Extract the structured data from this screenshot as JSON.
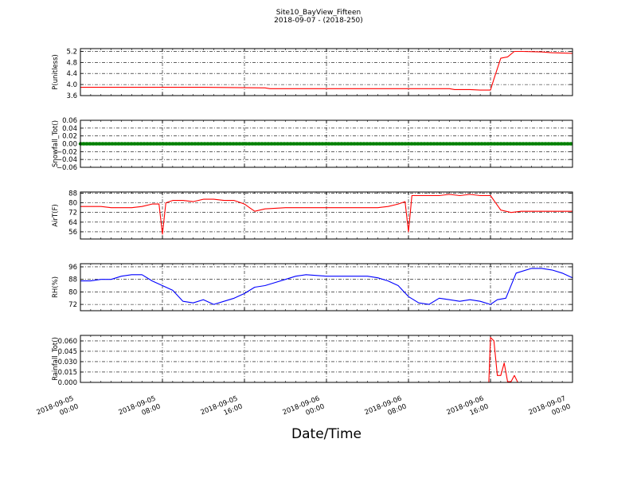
{
  "figure": {
    "title": "Site10_BayView_Fifteen",
    "subtitle": "2018-09-07 - (2018-250)",
    "xlabel": "Date/Time"
  },
  "x_axis": {
    "range": [
      "2018-09-05 00:00",
      "2018-09-07 00:00"
    ],
    "ticks": [
      {
        "t": "2018-09-05 00:00",
        "line1": "2018-09-05",
        "line2": "00:00"
      },
      {
        "t": "2018-09-05 08:00",
        "line1": "2018-09-05",
        "line2": "08:00"
      },
      {
        "t": "2018-09-05 16:00",
        "line1": "2018-09-05",
        "line2": "16:00"
      },
      {
        "t": "2018-09-06 00:00",
        "line1": "2018-09-06",
        "line2": "00:00"
      },
      {
        "t": "2018-09-06 08:00",
        "line1": "2018-09-06",
        "line2": "08:00"
      },
      {
        "t": "2018-09-06 16:00",
        "line1": "2018-09-06",
        "line2": "16:00"
      },
      {
        "t": "2018-09-07 00:00",
        "line1": "2018-09-07",
        "line2": "00:00"
      }
    ]
  },
  "chart_data": [
    {
      "type": "line",
      "ylabel": "P(unitless)",
      "ylim": [
        3.6,
        5.3
      ],
      "yticks": [
        "5.2",
        "4.8",
        "4.4",
        "4.0",
        "3.6"
      ],
      "grid": true,
      "color": "#ff0000",
      "x": [
        "2018-09-05 00:00",
        "2018-09-05 12:00",
        "2018-09-05 18:00",
        "2018-09-05 18:30",
        "2018-09-06 00:00",
        "2018-09-06 12:00",
        "2018-09-06 12:30",
        "2018-09-06 14:00",
        "2018-09-06 15:00",
        "2018-09-06 16:00",
        "2018-09-06 16:20",
        "2018-09-06 17:00",
        "2018-09-06 17:40",
        "2018-09-06 18:20",
        "2018-09-06 19:00",
        "2018-09-06 20:00",
        "2018-09-06 21:00",
        "2018-09-06 22:00",
        "2018-09-06 23:00",
        "2018-09-07 00:00"
      ],
      "y": [
        3.9,
        3.9,
        3.88,
        3.85,
        3.85,
        3.85,
        3.82,
        3.82,
        3.8,
        3.8,
        4.2,
        4.95,
        5.0,
        5.2,
        5.2,
        5.19,
        5.18,
        5.15,
        5.14,
        5.13
      ]
    },
    {
      "type": "scatter",
      "ylabel": "Snowfall_Tot()",
      "ylim": [
        -0.06,
        0.06
      ],
      "yticks": [
        "0.06",
        "0.04",
        "0.02",
        "0.00",
        "−0.02",
        "−0.04",
        "−0.06"
      ],
      "grid": true,
      "color": "#008000",
      "x": [
        "2018-09-05 00:00",
        "2018-09-07 00:00"
      ],
      "y": [
        0,
        0
      ]
    },
    {
      "type": "line",
      "ylabel": "AirT(F)",
      "ylim": [
        50,
        89
      ],
      "yticks": [
        "88",
        "80",
        "72",
        "64",
        "56"
      ],
      "grid": true,
      "color": "#ff0000",
      "x": [
        "2018-09-05 00:00",
        "2018-09-05 01:00",
        "2018-09-05 02:00",
        "2018-09-05 03:00",
        "2018-09-05 04:00",
        "2018-09-05 05:00",
        "2018-09-05 06:00",
        "2018-09-05 07:00",
        "2018-09-05 07:40",
        "2018-09-05 08:00",
        "2018-09-05 08:20",
        "2018-09-05 09:00",
        "2018-09-05 10:00",
        "2018-09-05 11:00",
        "2018-09-05 12:00",
        "2018-09-05 13:00",
        "2018-09-05 14:00",
        "2018-09-05 15:00",
        "2018-09-05 16:00",
        "2018-09-05 16:30",
        "2018-09-05 17:00",
        "2018-09-05 18:00",
        "2018-09-05 20:00",
        "2018-09-05 22:00",
        "2018-09-06 00:00",
        "2018-09-06 02:00",
        "2018-09-06 04:00",
        "2018-09-06 05:00",
        "2018-09-06 06:00",
        "2018-09-06 07:00",
        "2018-09-06 07:40",
        "2018-09-06 08:00",
        "2018-09-06 08:20",
        "2018-09-06 09:00",
        "2018-09-06 10:00",
        "2018-09-06 11:00",
        "2018-09-06 12:00",
        "2018-09-06 13:00",
        "2018-09-06 14:00",
        "2018-09-06 15:00",
        "2018-09-06 16:00",
        "2018-09-06 17:00",
        "2018-09-06 18:00",
        "2018-09-06 19:00",
        "2018-09-06 20:00",
        "2018-09-06 22:00",
        "2018-09-07 00:00"
      ],
      "y": [
        77,
        77,
        77,
        76,
        76,
        76,
        77,
        79,
        79,
        54,
        80,
        82,
        82,
        81,
        83,
        83,
        82,
        82,
        79,
        76,
        73,
        75,
        76,
        76,
        76,
        76,
        76,
        76,
        77,
        79,
        81,
        56,
        86,
        86,
        86,
        86,
        87,
        86,
        87,
        86,
        86,
        74,
        72,
        73,
        73,
        73,
        73
      ]
    },
    {
      "type": "line",
      "ylabel": "RH(%)",
      "ylim": [
        68,
        98
      ],
      "yticks": [
        "96",
        "88",
        "80",
        "72"
      ],
      "grid": true,
      "color": "#0000ff",
      "x": [
        "2018-09-05 00:00",
        "2018-09-05 01:00",
        "2018-09-05 02:00",
        "2018-09-05 03:00",
        "2018-09-05 04:00",
        "2018-09-05 05:00",
        "2018-09-05 06:00",
        "2018-09-05 07:00",
        "2018-09-05 08:00",
        "2018-09-05 09:00",
        "2018-09-05 10:00",
        "2018-09-05 11:00",
        "2018-09-05 12:00",
        "2018-09-05 13:00",
        "2018-09-05 14:00",
        "2018-09-05 15:00",
        "2018-09-05 16:00",
        "2018-09-05 17:00",
        "2018-09-05 18:00",
        "2018-09-05 19:00",
        "2018-09-05 20:00",
        "2018-09-05 21:00",
        "2018-09-05 22:00",
        "2018-09-06 00:00",
        "2018-09-06 02:00",
        "2018-09-06 03:00",
        "2018-09-06 04:00",
        "2018-09-06 05:00",
        "2018-09-06 06:00",
        "2018-09-06 07:00",
        "2018-09-06 08:00",
        "2018-09-06 09:00",
        "2018-09-06 10:00",
        "2018-09-06 11:00",
        "2018-09-06 12:00",
        "2018-09-06 13:00",
        "2018-09-06 14:00",
        "2018-09-06 15:00",
        "2018-09-06 16:00",
        "2018-09-06 16:40",
        "2018-09-06 17:30",
        "2018-09-06 18:30",
        "2018-09-06 20:00",
        "2018-09-06 21:00",
        "2018-09-06 22:00",
        "2018-09-06 23:00",
        "2018-09-07 00:00"
      ],
      "y": [
        87,
        87,
        88,
        88,
        90,
        91,
        91,
        87,
        84,
        81,
        74,
        73,
        75,
        72,
        74,
        76,
        79,
        83,
        84,
        86,
        88,
        90,
        91,
        90,
        90,
        90,
        90,
        89,
        87,
        84,
        77,
        73,
        72,
        76,
        75,
        74,
        75,
        74,
        72,
        75,
        76,
        92,
        95,
        95,
        94,
        92,
        89
      ]
    },
    {
      "type": "line",
      "ylabel": "Rainfall_Tot()",
      "ylim": [
        0,
        0.068
      ],
      "yticks": [
        "0.060",
        "0.045",
        "0.030",
        "0.015",
        "0.000"
      ],
      "grid": true,
      "color": "#ff0000",
      "x": [
        "2018-09-05 00:00",
        "2018-09-06 15:50",
        "2018-09-06 16:00",
        "2018-09-06 16:20",
        "2018-09-06 16:40",
        "2018-09-06 17:00",
        "2018-09-06 17:20",
        "2018-09-06 17:40",
        "2018-09-06 18:00",
        "2018-09-06 18:20",
        "2018-09-06 18:40",
        "2018-09-06 19:00",
        "2018-09-07 00:00"
      ],
      "y": [
        0,
        0,
        0.065,
        0.06,
        0.01,
        0.01,
        0.028,
        0.001,
        0.001,
        0.01,
        0.0,
        0.0,
        0.0
      ]
    }
  ]
}
